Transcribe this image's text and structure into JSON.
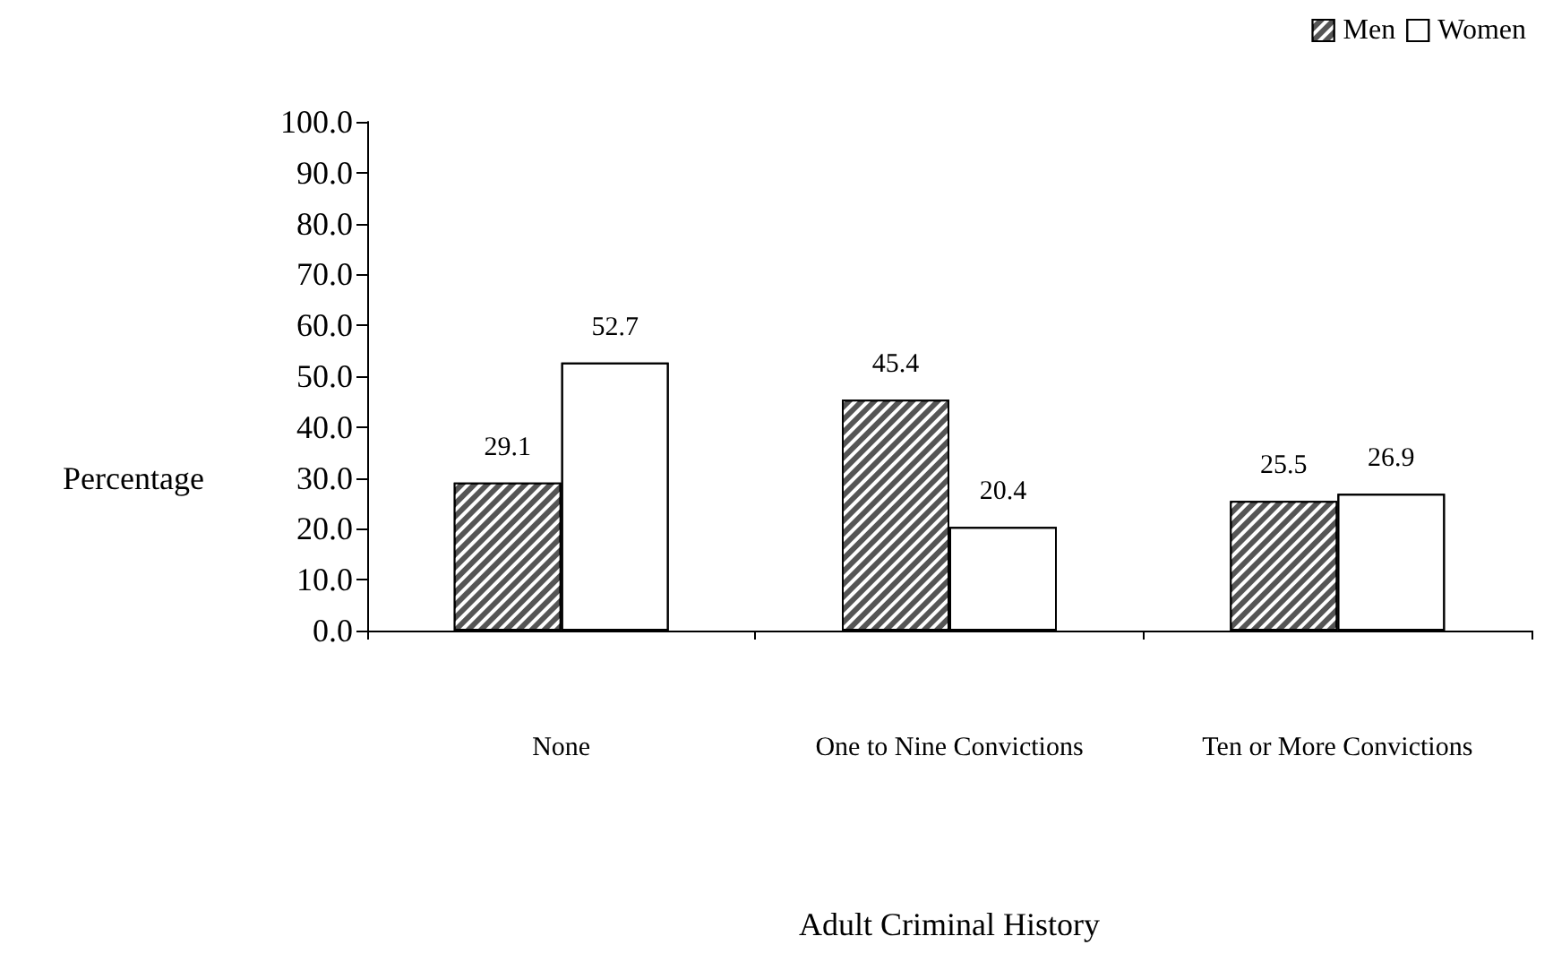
{
  "chart_data": {
    "type": "bar",
    "xlabel": "Adult Criminal History",
    "ylabel": "Percentage",
    "categories": [
      "None",
      "One to Nine Convictions",
      "Ten or More Convictions"
    ],
    "series": [
      {
        "name": "Men",
        "color": "#555555",
        "values": [
          29.1,
          45.4,
          25.5
        ]
      },
      {
        "name": "Women",
        "color": "#ffffff",
        "values": [
          52.7,
          20.4,
          26.9
        ]
      }
    ],
    "ylim": [
      0,
      100
    ],
    "yticks": [
      {
        "value": 0,
        "label": "0.0"
      },
      {
        "value": 10,
        "label": "10.0"
      },
      {
        "value": 20,
        "label": "20.0"
      },
      {
        "value": 30,
        "label": "30.0"
      },
      {
        "value": 40,
        "label": "40.0"
      },
      {
        "value": 50,
        "label": "50.0"
      },
      {
        "value": 60,
        "label": "60.0"
      },
      {
        "value": 70,
        "label": "70.0"
      },
      {
        "value": 80,
        "label": "80.0"
      },
      {
        "value": 90,
        "label": "90.0"
      },
      {
        "value": 100,
        "label": "100.0"
      }
    ],
    "data_labels": true,
    "grid": false,
    "legend": "top right"
  }
}
